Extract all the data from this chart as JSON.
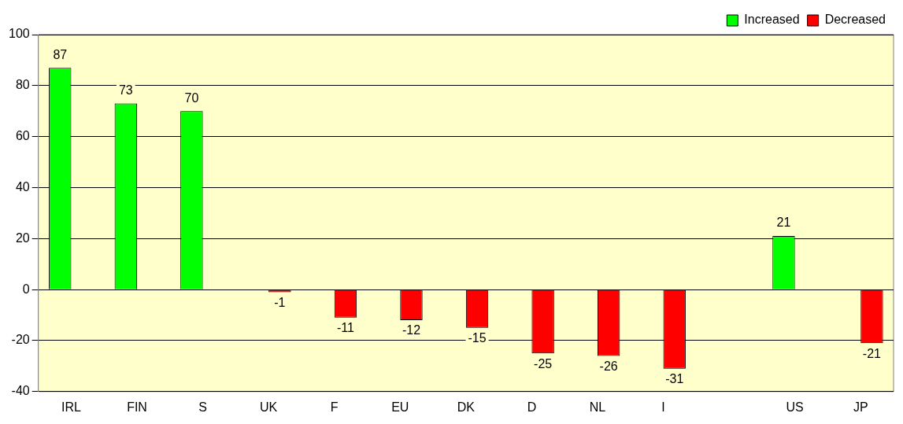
{
  "chart_data": {
    "type": "bar",
    "categories": [
      "IRL",
      "FIN",
      "S",
      "UK",
      "F",
      "EU",
      "DK",
      "D",
      "NL",
      "I",
      null,
      "US",
      "JP"
    ],
    "series": [
      {
        "name": "Increased",
        "color": "#00ff00",
        "values": [
          87,
          73,
          70,
          null,
          null,
          null,
          null,
          null,
          null,
          null,
          null,
          21,
          null
        ]
      },
      {
        "name": "Decreased",
        "color": "#ff0000",
        "values": [
          null,
          null,
          null,
          -1,
          -11,
          -12,
          -15,
          -25,
          -26,
          -31,
          null,
          null,
          -21
        ]
      }
    ],
    "ylim": [
      -40,
      100
    ],
    "yticks": [
      -40,
      -20,
      0,
      20,
      40,
      60,
      80,
      100
    ],
    "grid": "y",
    "legend": "top right",
    "data_labels": true
  }
}
